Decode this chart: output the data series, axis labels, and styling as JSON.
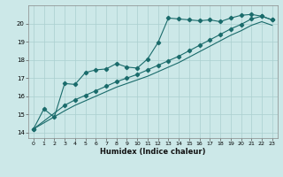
{
  "title": "",
  "xlabel": "Humidex (Indice chaleur)",
  "xlim": [
    -0.5,
    23.5
  ],
  "ylim": [
    13.7,
    21.0
  ],
  "yticks": [
    14,
    15,
    16,
    17,
    18,
    19,
    20
  ],
  "xticks": [
    0,
    1,
    2,
    3,
    4,
    5,
    6,
    7,
    8,
    9,
    10,
    11,
    12,
    13,
    14,
    15,
    16,
    17,
    18,
    19,
    20,
    21,
    22,
    23
  ],
  "bg_color": "#cce8e8",
  "grid_color": "#aacfcf",
  "line_color": "#1a6b6b",
  "line1_x": [
    0,
    1,
    2,
    3,
    4,
    5,
    6,
    7,
    8,
    9,
    10,
    11,
    12,
    13,
    14,
    15,
    16,
    17,
    18,
    19,
    20,
    21,
    22,
    23
  ],
  "line1_y": [
    14.2,
    15.3,
    14.85,
    16.7,
    16.65,
    17.3,
    17.45,
    17.5,
    17.8,
    17.6,
    17.55,
    18.05,
    18.95,
    20.3,
    20.25,
    20.2,
    20.15,
    20.2,
    20.1,
    20.3,
    20.45,
    20.5,
    20.4,
    20.2
  ],
  "line2_x": [
    0,
    3,
    4,
    5,
    6,
    7,
    8,
    9,
    10,
    11,
    12,
    13,
    14,
    15,
    16,
    17,
    18,
    19,
    20,
    21,
    22,
    23
  ],
  "line2_y": [
    14.2,
    15.5,
    15.8,
    16.05,
    16.3,
    16.55,
    16.8,
    17.0,
    17.2,
    17.45,
    17.7,
    17.95,
    18.2,
    18.5,
    18.8,
    19.1,
    19.4,
    19.7,
    19.95,
    20.25,
    20.4,
    20.2
  ],
  "line3_x": [
    0,
    3,
    4,
    5,
    6,
    7,
    8,
    9,
    10,
    11,
    12,
    13,
    14,
    15,
    16,
    17,
    18,
    19,
    20,
    21,
    22,
    23
  ],
  "line3_y": [
    14.2,
    15.2,
    15.5,
    15.75,
    16.0,
    16.25,
    16.5,
    16.7,
    16.9,
    17.1,
    17.35,
    17.6,
    17.85,
    18.15,
    18.45,
    18.75,
    19.05,
    19.35,
    19.6,
    19.9,
    20.1,
    19.9
  ]
}
